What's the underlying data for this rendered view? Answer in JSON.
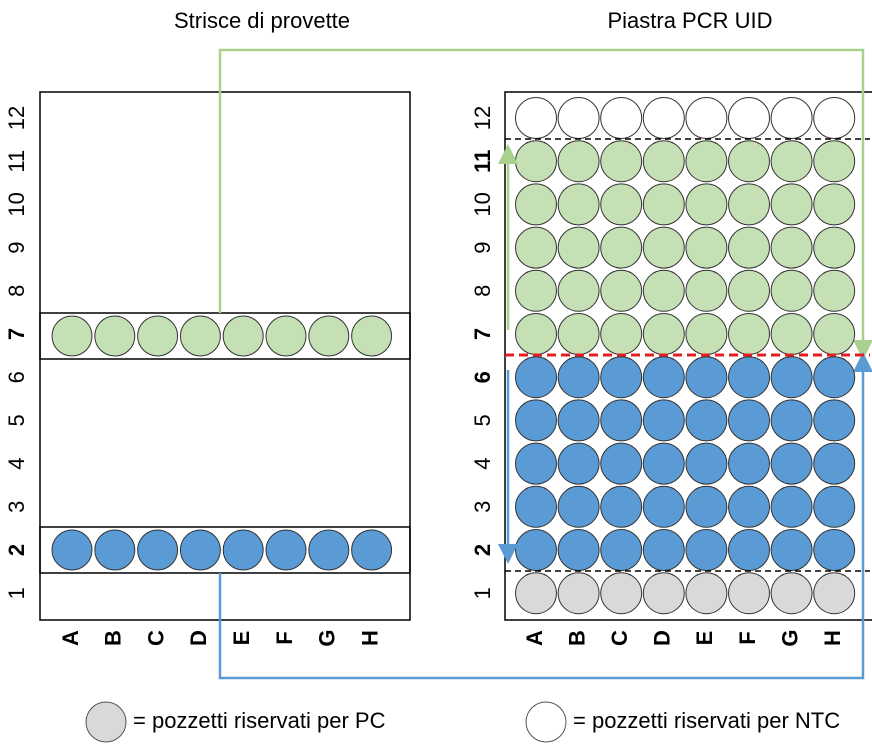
{
  "titles": {
    "left": "Strisce di provette",
    "right": "Piastra PCR UID"
  },
  "row_labels": [
    "12",
    "11",
    "10",
    "9",
    "8",
    "7",
    "6",
    "5",
    "4",
    "3",
    "2",
    "1"
  ],
  "column_labels": [
    "A",
    "B",
    "C",
    "D",
    "E",
    "F",
    "G",
    "H"
  ],
  "legend": {
    "pc": "= pozzetti riservati per PC",
    "ntc": "= pozzetti riservati per NTC"
  }
}
